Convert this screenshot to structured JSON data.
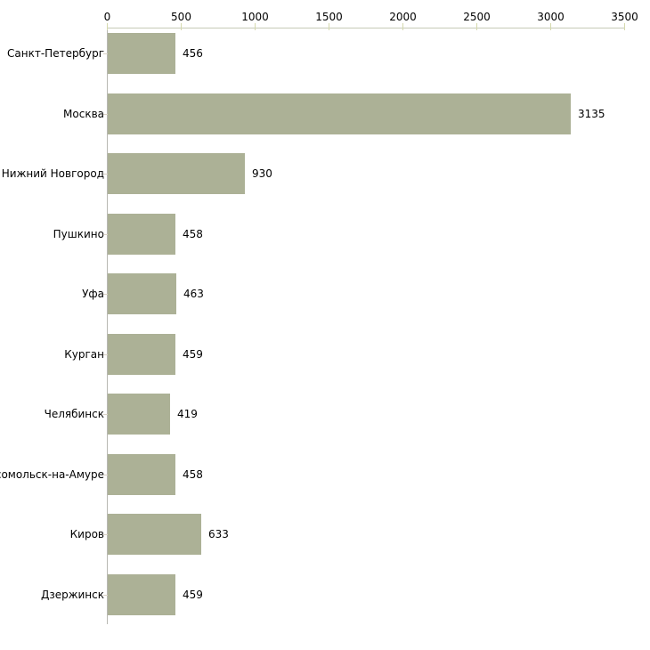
{
  "chart_data": {
    "type": "bar",
    "orientation": "horizontal",
    "title": "",
    "xlabel": "",
    "ylabel": "",
    "categories": [
      "Санкт-Петербург",
      "Москва",
      "Нижний Новгород",
      "Пушкино",
      "Уфа",
      "Курган",
      "Челябинск",
      "Комсомольск-на-Амуре",
      "Киров",
      "Дзержинск"
    ],
    "values": [
      456,
      3135,
      930,
      458,
      463,
      459,
      419,
      458,
      633,
      459
    ],
    "value_labels": [
      "456",
      "3135",
      "930",
      "458",
      "463",
      "459",
      "419",
      "458",
      "633",
      "459"
    ],
    "xlim": [
      0,
      3500
    ],
    "x_ticks": [
      0,
      500,
      1000,
      1500,
      2000,
      2500,
      3000,
      3500
    ],
    "x_tick_labels": [
      "0",
      "500",
      "1000",
      "1500",
      "2000",
      "2500",
      "3000",
      "3500"
    ],
    "x_axis_position": "top",
    "grid": false,
    "legend": null,
    "colors": {
      "bar_fill": "#acb196",
      "x_axis_line": "#c6cab6",
      "x_tick_mark": "#d5d9ad",
      "category_tick_mark": "#d9d2c6",
      "y_axis_line": "#b8b8b2",
      "label_text": "#000000",
      "background": "#ffffff"
    }
  }
}
